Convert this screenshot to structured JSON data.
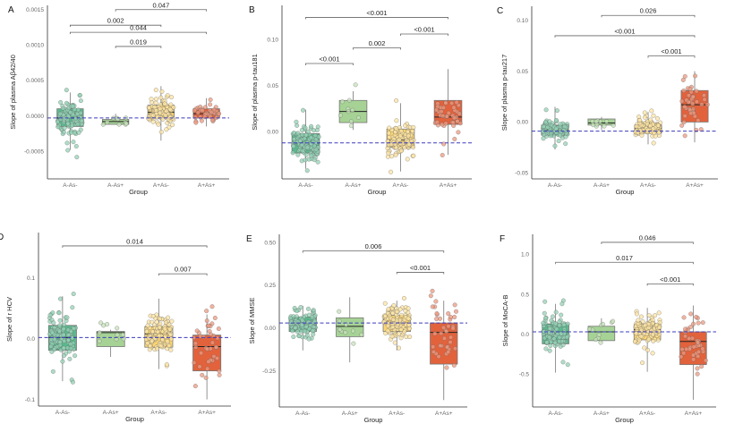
{
  "colors": {
    "A-As-": "#5bb98e",
    "A-As+": "#a6d395",
    "A+As-": "#fdd672",
    "A+As+": "#e2623c",
    "reference_line": "#3b3bbf"
  },
  "chart_data": [
    {
      "type": "box",
      "panel": "A",
      "ylabel": "Slope of plasma Aβ42/40",
      "xlabel": "Group",
      "categories": [
        "A-As-",
        "A-As+",
        "A+As-",
        "A+As+"
      ],
      "ylim": [
        -0.00089,
        0.00156
      ],
      "yticks": [
        -0.0005,
        0,
        0.0005,
        0.001,
        0.0015
      ],
      "ytick_labels": [
        "-0.0005",
        "0.0000",
        "0.0005",
        "0.0010",
        "0.0015"
      ],
      "reference_line": -3e-05,
      "boxes": [
        {
          "q1": -0.00015,
          "median": -3e-05,
          "q3": 0.0001,
          "low": -0.00048,
          "high": 0.00033
        },
        {
          "q1": -0.00012,
          "median": -8e-05,
          "q3": -5e-05,
          "low": -0.00012,
          "high": 3e-05
        },
        {
          "q1": -3e-05,
          "median": 5e-05,
          "q3": 0.00015,
          "low": -0.00035,
          "high": 0.00042
        },
        {
          "q1": -3e-05,
          "median": 3e-05,
          "q3": 0.0001,
          "low": -0.00015,
          "high": 0.00025
        }
      ],
      "brackets": [
        {
          "from": 1,
          "to": 3,
          "y": 0.0015,
          "label": "0.047"
        },
        {
          "from": 0,
          "to": 2,
          "y": 0.00128,
          "label": "0.002"
        },
        {
          "from": 0,
          "to": 3,
          "y": 0.00118,
          "label": "0.044"
        },
        {
          "from": 1,
          "to": 2,
          "y": 0.00098,
          "label": "0.019"
        }
      ]
    },
    {
      "type": "box",
      "panel": "B",
      "ylabel": "Slope of plasma p-tau181",
      "xlabel": "Group",
      "categories": [
        "A-As-",
        "A-As+",
        "A+As-",
        "A+As+"
      ],
      "ylim": [
        -0.051,
        0.137
      ],
      "yticks": [
        0,
        0.05,
        0.1
      ],
      "ytick_labels": [
        "0.00",
        "0.05",
        "0.10"
      ],
      "reference_line": -0.012,
      "boxes": [
        {
          "q1": -0.023,
          "median": -0.012,
          "q3": -0.002,
          "low": -0.04,
          "high": 0.024
        },
        {
          "q1": 0.01,
          "median": 0.022,
          "q3": 0.034,
          "low": 0.002,
          "high": 0.044
        },
        {
          "q1": -0.017,
          "median": -0.009,
          "q3": 0.003,
          "low": -0.043,
          "high": 0.031
        },
        {
          "q1": 0.008,
          "median": 0.016,
          "q3": 0.034,
          "low": -0.025,
          "high": 0.068
        }
      ],
      "brackets": [
        {
          "from": 0,
          "to": 3,
          "y": 0.124,
          "label": "<0.001"
        },
        {
          "from": 2,
          "to": 3,
          "y": 0.106,
          "label": "<0.001"
        },
        {
          "from": 1,
          "to": 2,
          "y": 0.091,
          "label": "0.002"
        },
        {
          "from": 0,
          "to": 1,
          "y": 0.074,
          "label": "<0.001"
        }
      ]
    },
    {
      "type": "box",
      "panel": "C",
      "ylabel": "Slope of plasma p-tau217",
      "xlabel": "Group",
      "categories": [
        "A-As-",
        "A-As+",
        "A+As-",
        "A+As+"
      ],
      "ylim": [
        -0.056,
        0.114
      ],
      "yticks": [
        -0.05,
        0,
        0.05,
        0.1
      ],
      "ytick_labels": [
        "-0.05",
        "0.00",
        "0.05",
        "0.10"
      ],
      "reference_line": -0.009,
      "boxes": [
        {
          "q1": -0.013,
          "median": -0.008,
          "q3": -0.003,
          "low": -0.027,
          "high": 0.015
        },
        {
          "q1": -0.003,
          "median": -0.001,
          "q3": 0.003,
          "low": -0.008,
          "high": 0.005
        },
        {
          "q1": -0.011,
          "median": -0.006,
          "q3": -0.003,
          "low": -0.022,
          "high": 0.01
        },
        {
          "q1": 0.0,
          "median": 0.017,
          "q3": 0.031,
          "low": -0.02,
          "high": 0.05
        }
      ],
      "brackets": [
        {
          "from": 1,
          "to": 3,
          "y": 0.105,
          "label": "0.026"
        },
        {
          "from": 0,
          "to": 3,
          "y": 0.085,
          "label": "<0.001"
        },
        {
          "from": 2,
          "to": 3,
          "y": 0.065,
          "label": "<0.001"
        }
      ]
    },
    {
      "type": "box",
      "panel": "D",
      "ylabel": "Slope of r HCV",
      "xlabel": "Group",
      "categories": [
        "A-As-",
        "A-As+",
        "A+As-",
        "A+As+"
      ],
      "ylim": [
        -0.111,
        0.175
      ],
      "yticks": [
        -0.1,
        0,
        0.1
      ],
      "ytick_labels": [
        "-0.1",
        "0.0",
        "0.1"
      ],
      "reference_line": 0.002,
      "boxes": [
        {
          "q1": -0.019,
          "median": 0.002,
          "q3": 0.022,
          "low": -0.07,
          "high": 0.07
        },
        {
          "q1": -0.013,
          "median": 0.01,
          "q3": 0.012,
          "low": -0.03,
          "high": 0.015
        },
        {
          "q1": -0.014,
          "median": 0.008,
          "q3": 0.02,
          "low": -0.05,
          "high": 0.066
        },
        {
          "q1": -0.053,
          "median": -0.013,
          "q3": 0.006,
          "low": -0.1,
          "high": 0.04
        }
      ],
      "brackets": [
        {
          "from": 0,
          "to": 3,
          "y": 0.153,
          "label": "0.014"
        },
        {
          "from": 2,
          "to": 3,
          "y": 0.107,
          "label": "0.007"
        }
      ]
    },
    {
      "type": "box",
      "panel": "E",
      "ylabel": "Slope of MMSE",
      "xlabel": "Group",
      "categories": [
        "A-As-",
        "A-As+",
        "A+As-",
        "A+As+"
      ],
      "ylim": [
        -0.46,
        0.547
      ],
      "yticks": [
        -0.25,
        0,
        0.25,
        0.5
      ],
      "ytick_labels": [
        "-0.25",
        "0.00",
        "0.25",
        "0.50"
      ],
      "reference_line": 0.03,
      "boxes": [
        {
          "q1": -0.02,
          "median": 0.03,
          "q3": 0.065,
          "low": -0.13,
          "high": 0.13
        },
        {
          "q1": -0.05,
          "median": 0.01,
          "q3": 0.06,
          "low": -0.2,
          "high": 0.18
        },
        {
          "q1": -0.02,
          "median": 0.03,
          "q3": 0.075,
          "low": -0.13,
          "high": 0.16
        },
        {
          "q1": -0.21,
          "median": -0.025,
          "q3": 0.03,
          "low": -0.42,
          "high": 0.16
        }
      ],
      "brackets": [
        {
          "from": 0,
          "to": 3,
          "y": 0.45,
          "label": "0.006"
        },
        {
          "from": 2,
          "to": 3,
          "y": 0.325,
          "label": "<0.001"
        }
      ]
    },
    {
      "type": "box",
      "panel": "F",
      "ylabel": "Slope of MoCA-B",
      "xlabel": "Group",
      "categories": [
        "A-As-",
        "A-As+",
        "A+As-",
        "A+As+"
      ],
      "ylim": [
        -0.91,
        1.25
      ],
      "yticks": [
        -0.5,
        0,
        0.5,
        1.0
      ],
      "ytick_labels": [
        "-0.5",
        "0.0",
        "0.5",
        "1.0"
      ],
      "reference_line": 0.03,
      "boxes": [
        {
          "q1": -0.12,
          "median": 0.03,
          "q3": 0.13,
          "low": -0.48,
          "high": 0.38
        },
        {
          "q1": -0.08,
          "median": 0.03,
          "q3": 0.1,
          "low": -0.1,
          "high": 0.2
        },
        {
          "q1": -0.07,
          "median": 0.06,
          "q3": 0.12,
          "low": -0.47,
          "high": 0.33
        },
        {
          "q1": -0.38,
          "median": -0.09,
          "q3": 0.03,
          "low": -0.82,
          "high": 0.36
        }
      ],
      "brackets": [
        {
          "from": 1,
          "to": 3,
          "y": 1.15,
          "label": "0.046"
        },
        {
          "from": 0,
          "to": 3,
          "y": 0.9,
          "label": "0.017"
        },
        {
          "from": 2,
          "to": 3,
          "y": 0.63,
          "label": "<0.001"
        }
      ]
    }
  ]
}
